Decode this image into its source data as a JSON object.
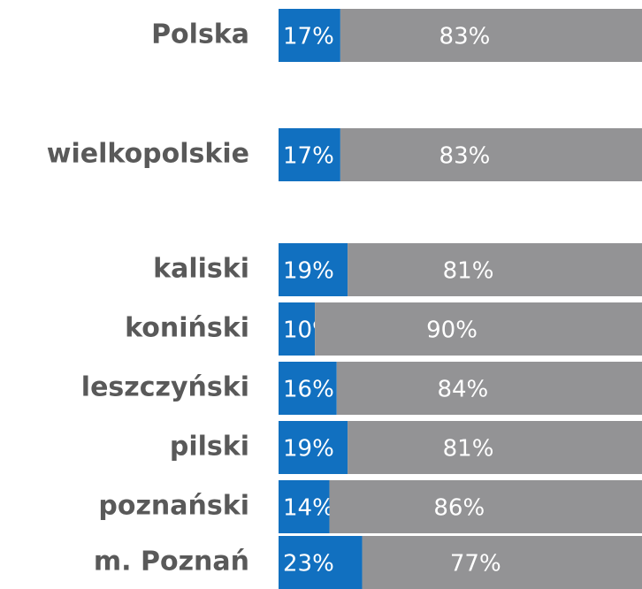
{
  "chart_data": {
    "type": "stacked-bar-100",
    "categories": [
      "Polska",
      "wielkopolskie",
      "kaliski",
      "koniński",
      "leszczyński",
      "pilski",
      "poznański",
      "m. Poznań"
    ],
    "series": [
      {
        "name": null,
        "color": "#1170c0",
        "values": [
          17,
          17,
          19,
          10,
          16,
          19,
          14,
          23
        ],
        "value_labels": [
          "17%",
          "17%",
          "19%",
          "10%",
          "16%",
          "19%",
          "14%",
          "23%"
        ]
      },
      {
        "name": null,
        "color": "#939395",
        "values": [
          83,
          83,
          81,
          90,
          84,
          81,
          86,
          77
        ],
        "value_labels": [
          "83%",
          "83%",
          "81%",
          "90%",
          "84%",
          "81%",
          "86%",
          "77%"
        ]
      }
    ],
    "xlim": [
      0,
      100
    ]
  }
}
